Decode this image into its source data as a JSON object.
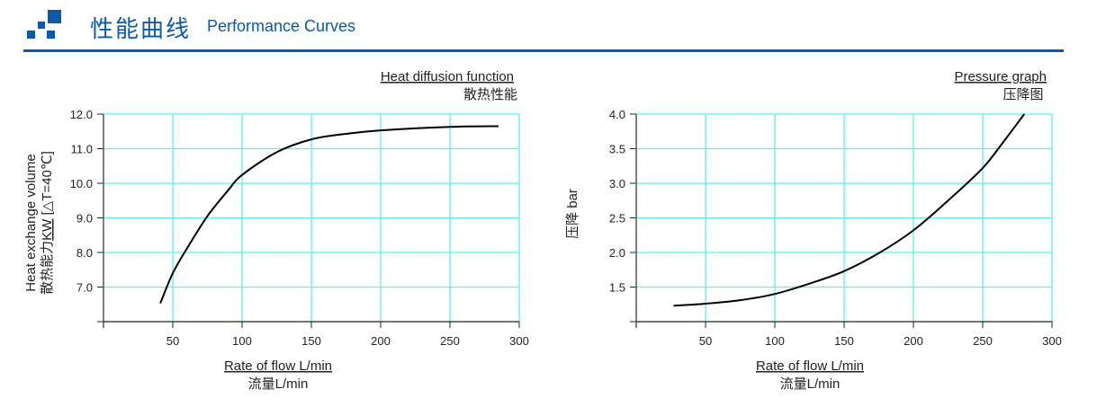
{
  "header": {
    "title_cn": "性能曲线",
    "title_en": "Performance Curves",
    "brand_color": "#0a5aa8",
    "logo_icon": "blue-squares-icon"
  },
  "chart_data": [
    {
      "type": "line",
      "title": "Heat diffusion function",
      "subtitle": "散热性能",
      "xlabel": "Rate of flow L/min",
      "xlabel_cn": "流量L/min",
      "ylabel": "Heat exchange volume",
      "ylabel_cn_prefix": "散热能力",
      "ylabel_unit": "KW",
      "ylabel_suffix": "[△T=40℃]",
      "xlim": [
        0,
        300
      ],
      "ylim": [
        6.0,
        12.0
      ],
      "xticks": [
        50,
        100,
        150,
        200,
        250,
        300
      ],
      "xtick_labels": [
        "50",
        "100",
        "150",
        "200",
        "250",
        "300"
      ],
      "yticks": [
        7,
        8,
        9,
        10,
        11,
        12
      ],
      "ytick_labels": [
        "7.0",
        "8.0",
        "9.0",
        "10.0",
        "11.0",
        "12.0"
      ],
      "grid": true,
      "grid_color": "#5ef0f0",
      "line_color": "#000000",
      "x": [
        41,
        50,
        60,
        75,
        90,
        100,
        125,
        150,
        175,
        200,
        250,
        285
      ],
      "y": [
        6.53,
        7.4,
        8.1,
        9.05,
        9.8,
        10.24,
        10.9,
        11.27,
        11.43,
        11.53,
        11.63,
        11.65
      ]
    },
    {
      "type": "line",
      "title": "Pressure graph",
      "subtitle": "压降图",
      "xlabel": "Rate of flow L/min",
      "xlabel_cn": "流量L/min",
      "ylabel": "压降 bar",
      "xlim": [
        0,
        300
      ],
      "ylim": [
        1.0,
        4.0
      ],
      "xticks": [
        50,
        100,
        150,
        200,
        250,
        300
      ],
      "xtick_labels": [
        "50",
        "100",
        "150",
        "200",
        "250",
        "300"
      ],
      "yticks": [
        1.5,
        2.0,
        2.5,
        3.0,
        3.5,
        4.0
      ],
      "ytick_labels": [
        "1.5",
        "2.0",
        "2.5",
        "3.0",
        "3.5",
        "4.0"
      ],
      "grid": true,
      "grid_color": "#5ef0f0",
      "line_color": "#000000",
      "x": [
        27,
        50,
        75,
        100,
        125,
        150,
        175,
        200,
        225,
        250,
        265,
        280
      ],
      "y": [
        1.23,
        1.26,
        1.31,
        1.4,
        1.55,
        1.73,
        1.99,
        2.32,
        2.75,
        3.22,
        3.6,
        4.0
      ]
    }
  ]
}
